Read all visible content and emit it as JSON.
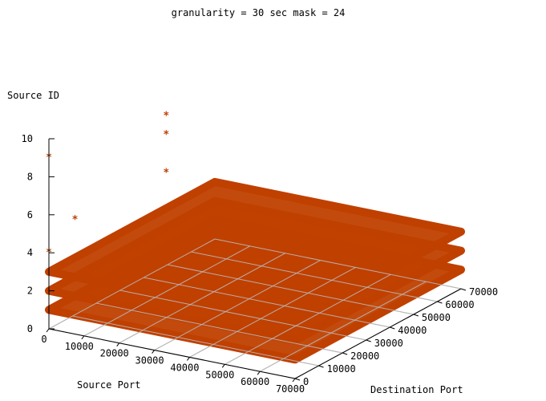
{
  "chart_data": {
    "type": "scatter",
    "title": "granularity = 30 sec mask = 24",
    "xlabel": "Source Port",
    "ylabel": "Destination Port",
    "zlabel": "Source ID",
    "xlim": [
      0,
      70000
    ],
    "ylim": [
      0,
      70000
    ],
    "zlim": [
      0,
      10
    ],
    "x_ticks": [
      "0",
      "10000",
      "20000",
      "30000",
      "40000",
      "50000",
      "60000",
      "70000"
    ],
    "y_ticks": [
      "0",
      "10000",
      "20000",
      "30000",
      "40000",
      "50000",
      "60000",
      "70000"
    ],
    "z_ticks": [
      "0",
      "2",
      "4",
      "6",
      "8",
      "10"
    ],
    "grid": true,
    "marker": "*",
    "color": "#c04000",
    "layers": [
      {
        "z": 1,
        "x_range": [
          0,
          70000
        ],
        "y_range": [
          0,
          70000
        ]
      },
      {
        "z": 2,
        "x_range": [
          0,
          70000
        ],
        "y_range": [
          0,
          70000
        ]
      },
      {
        "z": 3,
        "x_range": [
          0,
          70000
        ],
        "y_range": [
          0,
          70000
        ]
      }
    ],
    "outliers": [
      {
        "x": 0,
        "y": 0,
        "z": 4
      },
      {
        "x": 0,
        "y": 0,
        "z": 9
      },
      {
        "x": 0,
        "y": 11000,
        "z": 5
      },
      {
        "x": 1000,
        "y": 48000,
        "z": 5
      },
      {
        "x": 1000,
        "y": 48000,
        "z": 7
      },
      {
        "x": 1000,
        "y": 48000,
        "z": 8
      }
    ]
  }
}
